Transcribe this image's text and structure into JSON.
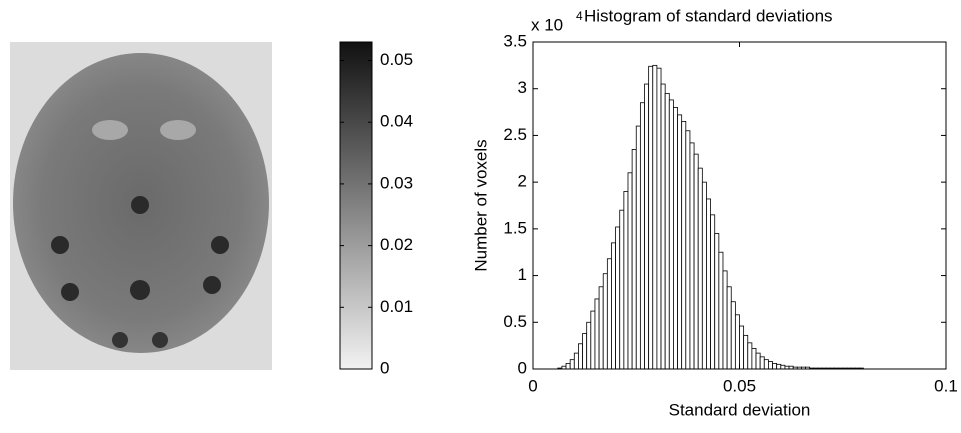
{
  "chart_data": [
    {
      "type": "colorbar",
      "ylim": [
        0,
        0.053
      ],
      "yticks": [
        0,
        0.01,
        0.02,
        0.03,
        0.04,
        0.05
      ],
      "colors": [
        "#f2f2f2",
        "#111111"
      ]
    },
    {
      "type": "histogram",
      "title": "Histogram of standard deviations",
      "xlabel": "Standard deviation",
      "ylabel": "Number of voxels",
      "y_multiplier": {
        "base": "x 10",
        "exponent": "4"
      },
      "xlim": [
        0,
        0.1
      ],
      "xticks": [
        0,
        0.05,
        0.1
      ],
      "ylim": [
        0,
        3.5
      ],
      "yticks": [
        0,
        0.5,
        1,
        1.5,
        2,
        2.5,
        3,
        3.5
      ],
      "color": "#ffffff",
      "edgecolor": "#000000",
      "grid": false,
      "bins": [
        0,
        0.001,
        0.002,
        0.003,
        0.004,
        0.005,
        0.006,
        0.007,
        0.008,
        0.009,
        0.01,
        0.011,
        0.012,
        0.013,
        0.014,
        0.015,
        0.016,
        0.017,
        0.018,
        0.019,
        0.02,
        0.021,
        0.022,
        0.023,
        0.024,
        0.025,
        0.026,
        0.027,
        0.028,
        0.029,
        0.03,
        0.031,
        0.032,
        0.033,
        0.034,
        0.035,
        0.036,
        0.037,
        0.038,
        0.039,
        0.04,
        0.041,
        0.042,
        0.043,
        0.044,
        0.045,
        0.046,
        0.047,
        0.048,
        0.049,
        0.05,
        0.051,
        0.052,
        0.053,
        0.054,
        0.055,
        0.056,
        0.057,
        0.058,
        0.059,
        0.06,
        0.061,
        0.062,
        0.063,
        0.064,
        0.065,
        0.066,
        0.067,
        0.068,
        0.069,
        0.07,
        0.071,
        0.072,
        0.073,
        0.074,
        0.075,
        0.076,
        0.077,
        0.078,
        0.079,
        0.08,
        0.081,
        0.082,
        0.083,
        0.084,
        0.085,
        0.086,
        0.087,
        0.088,
        0.089,
        0.09,
        0.091,
        0.092,
        0.093,
        0.094,
        0.095,
        0.096,
        0.097,
        0.098,
        0.099,
        0.1
      ],
      "counts": [
        0,
        0,
        0,
        0,
        0,
        0,
        0.01,
        0.03,
        0.06,
        0.1,
        0.17,
        0.27,
        0.38,
        0.5,
        0.62,
        0.75,
        0.88,
        1.02,
        1.18,
        1.35,
        1.52,
        1.7,
        1.9,
        2.1,
        2.35,
        2.6,
        2.85,
        3.05,
        3.24,
        3.25,
        3.22,
        3.05,
        2.95,
        2.88,
        2.8,
        2.72,
        2.65,
        2.55,
        2.42,
        2.3,
        2.15,
        2,
        1.82,
        1.65,
        1.45,
        1.25,
        1.05,
        0.88,
        0.72,
        0.58,
        0.46,
        0.36,
        0.28,
        0.22,
        0.17,
        0.13,
        0.1,
        0.08,
        0.06,
        0.05,
        0.04,
        0.03,
        0.03,
        0.02,
        0.02,
        0.02,
        0.02,
        0.01,
        0.01,
        0.01,
        0.01,
        0.01,
        0.01,
        0.01,
        0.01,
        0.01,
        0.01,
        0.01,
        0.01,
        0.01,
        0,
        0,
        0,
        0,
        0,
        0,
        0,
        0,
        0,
        0,
        0,
        0,
        0,
        0,
        0,
        0,
        0,
        0,
        0,
        0
      ]
    }
  ]
}
